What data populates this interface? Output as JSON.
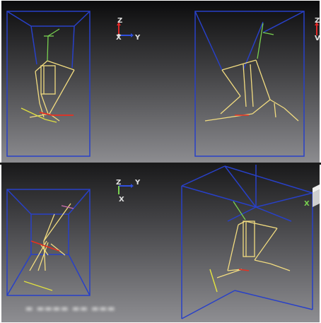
{
  "views": [
    {
      "id": "view-top-left",
      "axes": {
        "vertical": "Z",
        "horizontal_1": "X",
        "horizontal_2": "Y"
      }
    },
    {
      "id": "view-top-right",
      "axes": {
        "vertical": "Z",
        "partial": "V"
      }
    },
    {
      "id": "view-bottom-left",
      "axes": {
        "vertical": "Z",
        "horizontal": "Y",
        "depth": "X"
      }
    },
    {
      "id": "view-bottom-right",
      "axes": {
        "depth": "X"
      }
    }
  ],
  "status": {
    "text": "▬ ▬▬▬▬ ▬▬ ▬▬▬"
  },
  "colors": {
    "frame": "#2840c8",
    "skeleton": "#f2dc80",
    "spine": "#78d050",
    "foot": "#e0e040",
    "hip": "#e83020",
    "axis_x": "#e0e0e0",
    "axis_y": "#3050e0",
    "axis_z": "#e02828"
  }
}
